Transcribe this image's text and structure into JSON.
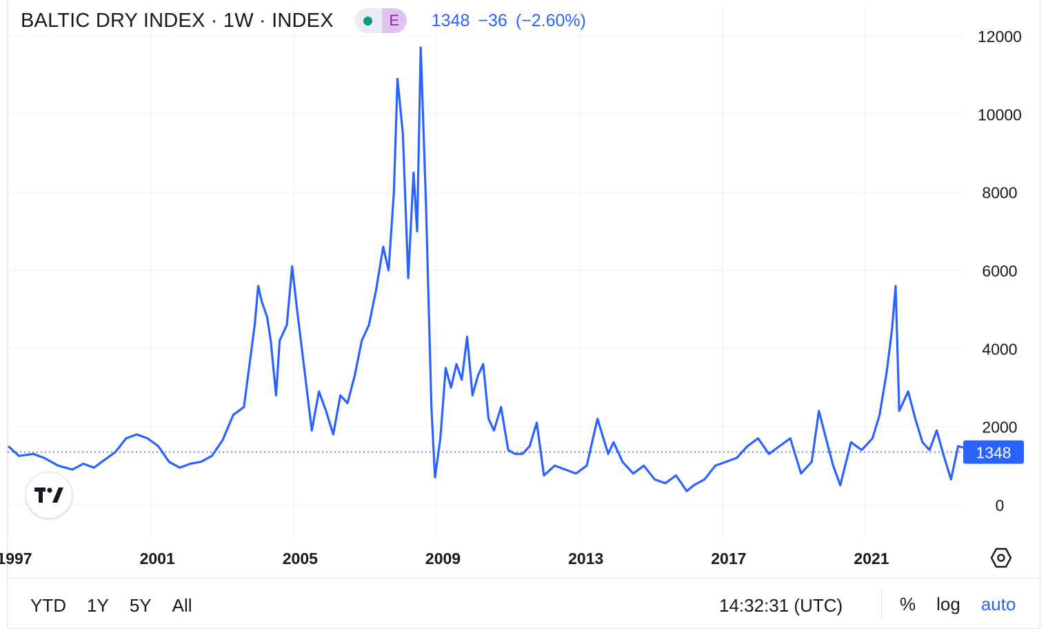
{
  "header": {
    "title": "BALTIC DRY INDEX · 1W · INDEX",
    "status_badge": "E",
    "price": "1348",
    "change": "−36",
    "change_pct": "(−2.60%)"
  },
  "bottom_bar": {
    "ranges": [
      "YTD",
      "1Y",
      "5Y",
      "All"
    ],
    "clock": "14:32:31 (UTC)",
    "percent_label": "%",
    "log_label": "log",
    "auto_label": "auto"
  },
  "colors": {
    "line": "#2962ff",
    "grid": "#f0f3fa",
    "text": "#131722",
    "accent": "#2962ff"
  },
  "icons": {
    "settings": "settings-icon",
    "logo": "tradingview-logo-icon"
  },
  "chart_data": {
    "type": "line",
    "title": "",
    "xlabel": "",
    "ylabel": "",
    "ylim": [
      -800,
      12600
    ],
    "y_ticks": [
      0,
      2000,
      4000,
      6000,
      8000,
      10000,
      12000
    ],
    "y_tick_labels": [
      "0",
      "2000",
      "4000",
      "6000",
      "8000",
      "10000",
      "12000"
    ],
    "x_ticks": [
      1997,
      2001,
      2005,
      2009,
      2013,
      2017,
      2021
    ],
    "x_tick_labels": [
      "1997",
      "2001",
      "2005",
      "2009",
      "2013",
      "2017",
      "2021"
    ],
    "xlim": [
      1997,
      2024.2
    ],
    "grid": true,
    "last_value": 1348,
    "last_value_label": "1348",
    "series": [
      {
        "x": [
          1997.0,
          1997.3,
          1997.7,
          1998.0,
          1998.4,
          1998.8,
          1999.1,
          1999.4,
          1999.7,
          2000.0,
          2000.3,
          2000.6,
          2000.9,
          2001.2,
          2001.5,
          2001.8,
          2002.1,
          2002.4,
          2002.7,
          2003.0,
          2003.3,
          2003.6,
          2003.9,
          2004.0,
          2004.1,
          2004.25,
          2004.35,
          2004.5,
          2004.6,
          2004.8,
          2004.95,
          2005.1,
          2005.3,
          2005.5,
          2005.7,
          2005.9,
          2006.1,
          2006.3,
          2006.5,
          2006.7,
          2006.9,
          2007.1,
          2007.3,
          2007.5,
          2007.65,
          2007.8,
          2007.9,
          2008.05,
          2008.2,
          2008.35,
          2008.45,
          2008.55,
          2008.7,
          2008.85,
          2008.95,
          2009.1,
          2009.25,
          2009.4,
          2009.55,
          2009.7,
          2009.85,
          2010.0,
          2010.15,
          2010.3,
          2010.45,
          2010.6,
          2010.8,
          2011.0,
          2011.2,
          2011.4,
          2011.6,
          2011.8,
          2012.0,
          2012.3,
          2012.6,
          2012.9,
          2013.2,
          2013.5,
          2013.8,
          2013.95,
          2014.2,
          2014.5,
          2014.8,
          2015.1,
          2015.4,
          2015.7,
          2016.0,
          2016.2,
          2016.5,
          2016.8,
          2017.1,
          2017.4,
          2017.7,
          2018.0,
          2018.3,
          2018.6,
          2018.9,
          2019.2,
          2019.5,
          2019.7,
          2019.9,
          2020.1,
          2020.3,
          2020.6,
          2020.9,
          2021.2,
          2021.4,
          2021.6,
          2021.75,
          2021.85,
          2021.95,
          2022.2,
          2022.4,
          2022.6,
          2022.8,
          2023.0,
          2023.2,
          2023.4,
          2023.6,
          2023.8,
          2024.0,
          2024.2
        ],
        "values": [
          1500,
          1250,
          1300,
          1200,
          1000,
          900,
          1050,
          950,
          1150,
          1350,
          1700,
          1800,
          1700,
          1500,
          1100,
          950,
          1050,
          1100,
          1250,
          1650,
          2300,
          2500,
          4600,
          5600,
          5200,
          4800,
          4200,
          2800,
          4200,
          4600,
          6100,
          4900,
          3400,
          1900,
          2900,
          2400,
          1800,
          2800,
          2600,
          3300,
          4200,
          4600,
          5500,
          6600,
          6000,
          8000,
          10900,
          9500,
          5800,
          8500,
          7000,
          11700,
          7600,
          2500,
          700,
          1700,
          3500,
          3000,
          3600,
          3200,
          4300,
          2800,
          3300,
          3600,
          2200,
          1900,
          2500,
          1400,
          1300,
          1300,
          1500,
          2100,
          750,
          1000,
          900,
          800,
          1000,
          2200,
          1300,
          1600,
          1100,
          800,
          1000,
          650,
          550,
          750,
          350,
          500,
          650,
          1000,
          1100,
          1200,
          1500,
          1700,
          1300,
          1500,
          1700,
          800,
          1100,
          2400,
          1700,
          1000,
          500,
          1600,
          1400,
          1700,
          2300,
          3400,
          4500,
          5600,
          2400,
          2900,
          2200,
          1600,
          1400,
          1900,
          1250,
          650,
          1500,
          1450,
          1550,
          1348
        ]
      }
    ]
  }
}
